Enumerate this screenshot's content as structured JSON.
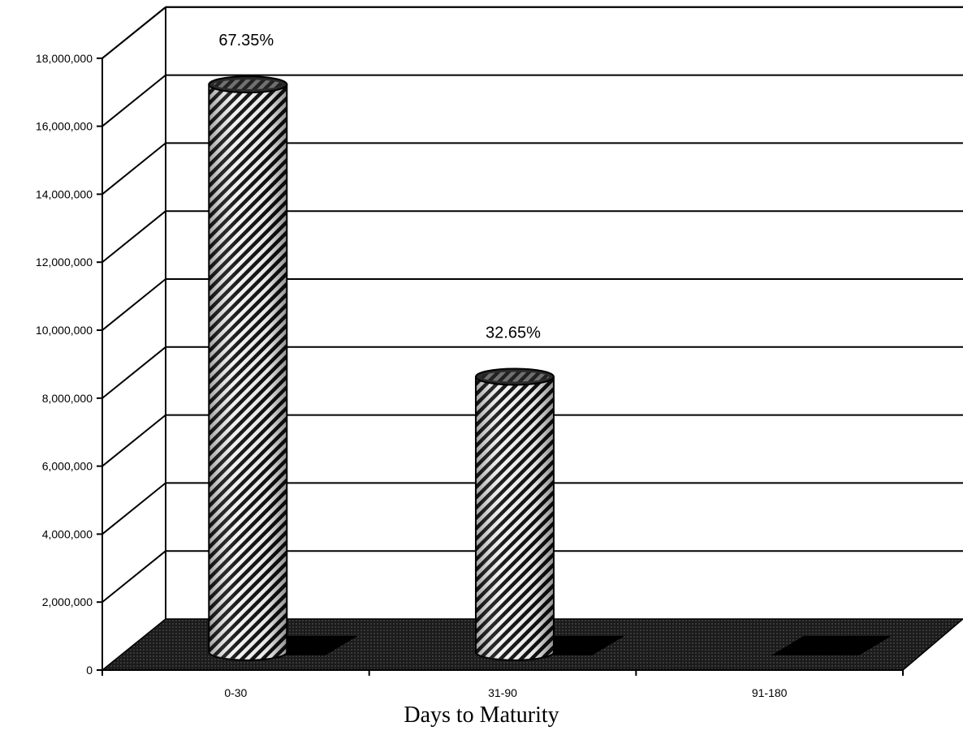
{
  "chart_data": {
    "type": "bar",
    "style": "3d-cylinder",
    "categories": [
      "0-30",
      "31-90",
      "91-180"
    ],
    "values": [
      16700000,
      8100000,
      0
    ],
    "data_labels": [
      "67.35%",
      "32.65%",
      ""
    ],
    "xlabel": "Days to Maturity",
    "ylabel": "",
    "ylim": [
      0,
      18000000
    ],
    "yticks": [
      "0",
      "2,000,000",
      "4,000,000",
      "6,000,000",
      "8,000,000",
      "10,000,000",
      "12,000,000",
      "14,000,000",
      "16,000,000",
      "18,000,000"
    ],
    "grid": true,
    "legend": "none",
    "colors": {
      "bar_stripe_dark": "#111111",
      "bar_stripe_light": "#f2f2f2",
      "floor": "#1a1a1a",
      "grid": "#000000"
    }
  }
}
